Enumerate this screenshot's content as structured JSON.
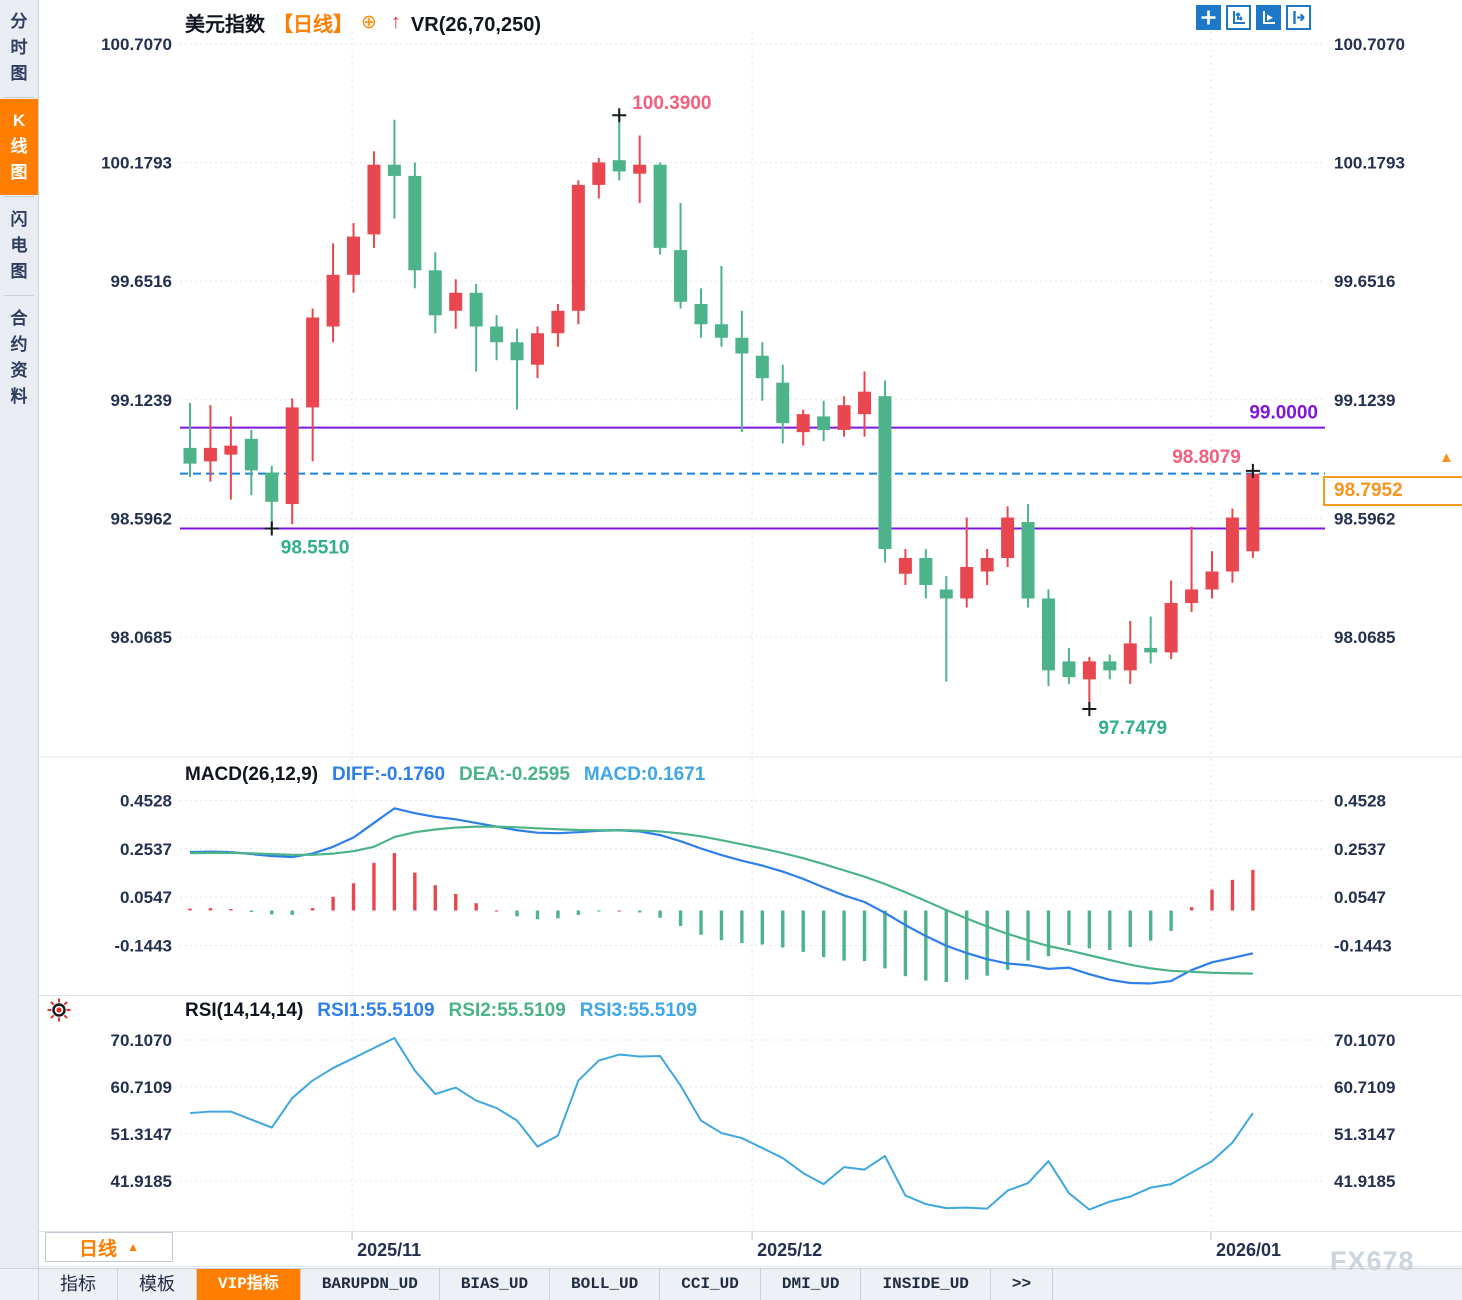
{
  "header": {
    "symbol": "美元指数",
    "period": "【日线】",
    "indicator": "VR(26,70,250)"
  },
  "toolbar": {
    "icons": [
      "crosshair-tool",
      "axis-scale-tool",
      "auto-fit-tool",
      "go-latest-tool"
    ]
  },
  "sidebar": {
    "tabs": [
      {
        "label": "分时图",
        "active": false
      },
      {
        "label": "K线图",
        "active": true
      },
      {
        "label": "闪电图",
        "active": false
      },
      {
        "label": "合约资料",
        "active": false
      }
    ]
  },
  "colors": {
    "up": "#e8474f",
    "down": "#4db38a",
    "purple_line": "#7d16e0",
    "dashed_blue": "#1b82e0",
    "diff_line": "#2e7fe8",
    "dea_line": "#4bb388",
    "macd_text": "#3fa6e8",
    "rsi_line": "#3ea7e0",
    "accent_orange": "#ff7e00",
    "price_box_orange": "#f59b22",
    "marker_pink": "#f2607d",
    "marker_teal": "#2fae8e",
    "axis_text": "#23304e"
  },
  "bottom": {
    "timeframe_button": {
      "label": "日线",
      "arrow": "▲"
    },
    "tabs": [
      {
        "label": "指标",
        "active": false
      },
      {
        "label": "模板",
        "active": false
      },
      {
        "label": "VIP指标",
        "active": true
      },
      {
        "label": "BARUPDN_UD",
        "active": false
      },
      {
        "label": "BIAS_UD",
        "active": false
      },
      {
        "label": "BOLL_UD",
        "active": false
      },
      {
        "label": "CCI_UD",
        "active": false
      },
      {
        "label": "DMI_UD",
        "active": false
      },
      {
        "label": "INSIDE_UD",
        "active": false
      },
      {
        "label": ">>",
        "active": false
      }
    ],
    "watermark": "FX678"
  },
  "chart_data": {
    "type": "candlestick",
    "title": "美元指数 日线",
    "x_axis": {
      "labels": [
        "2025/11",
        "2025/12",
        "2026/01"
      ],
      "gridline_indexes": [
        7.93,
        27.5,
        49.95
      ]
    },
    "main": {
      "y_ticks": [
        "100.7070",
        "100.1793",
        "99.6516",
        "99.1239",
        "98.5962",
        "98.0685"
      ],
      "hlines": [
        {
          "value": 99.0,
          "label": "99.0000"
        },
        {
          "value": 98.551,
          "label": ""
        }
      ],
      "current_price": {
        "value": 98.7952,
        "label": "98.7952"
      },
      "annotations": [
        {
          "index": 4,
          "at": "low",
          "text": "98.5510",
          "side": "below"
        },
        {
          "index": 21,
          "at": "high",
          "text": "100.3900",
          "side": "right"
        },
        {
          "index": 44,
          "at": "low",
          "text": "97.7479",
          "side": "below"
        },
        {
          "index": 52,
          "at": "high",
          "text": "98.8079",
          "side": "left"
        }
      ],
      "candles": [
        [
          98.91,
          99.11,
          98.78,
          98.84
        ],
        [
          98.85,
          99.1,
          98.76,
          98.91
        ],
        [
          98.88,
          99.05,
          98.68,
          98.92
        ],
        [
          98.95,
          98.99,
          98.7,
          98.81
        ],
        [
          98.8,
          98.83,
          98.551,
          98.67
        ],
        [
          98.66,
          99.13,
          98.57,
          99.09
        ],
        [
          99.09,
          99.53,
          98.85,
          99.49
        ],
        [
          99.45,
          99.82,
          99.38,
          99.68
        ],
        [
          99.68,
          99.91,
          99.6,
          99.85
        ],
        [
          99.86,
          100.23,
          99.8,
          100.17
        ],
        [
          100.17,
          100.37,
          99.93,
          100.12
        ],
        [
          100.12,
          100.18,
          99.62,
          99.7
        ],
        [
          99.7,
          99.78,
          99.42,
          99.5
        ],
        [
          99.52,
          99.66,
          99.44,
          99.6
        ],
        [
          99.6,
          99.64,
          99.25,
          99.45
        ],
        [
          99.45,
          99.5,
          99.3,
          99.38
        ],
        [
          99.38,
          99.44,
          99.08,
          99.3
        ],
        [
          99.28,
          99.45,
          99.22,
          99.42
        ],
        [
          99.42,
          99.55,
          99.36,
          99.52
        ],
        [
          99.52,
          100.1,
          99.46,
          100.08
        ],
        [
          100.08,
          100.2,
          100.02,
          100.18
        ],
        [
          100.19,
          100.39,
          100.1,
          100.14
        ],
        [
          100.13,
          100.3,
          100.0,
          100.17
        ],
        [
          100.17,
          100.18,
          99.77,
          99.8
        ],
        [
          99.79,
          100.0,
          99.53,
          99.56
        ],
        [
          99.55,
          99.62,
          99.4,
          99.46
        ],
        [
          99.46,
          99.72,
          99.36,
          99.4
        ],
        [
          99.4,
          99.52,
          98.98,
          99.33
        ],
        [
          99.32,
          99.38,
          99.12,
          99.22
        ],
        [
          99.2,
          99.28,
          98.93,
          99.02
        ],
        [
          98.98,
          99.08,
          98.92,
          99.06
        ],
        [
          99.05,
          99.12,
          98.94,
          98.99
        ],
        [
          98.99,
          99.14,
          98.96,
          99.1
        ],
        [
          99.06,
          99.25,
          98.96,
          99.16
        ],
        [
          99.14,
          99.21,
          98.4,
          98.46
        ],
        [
          98.35,
          98.46,
          98.3,
          98.42
        ],
        [
          98.42,
          98.46,
          98.24,
          98.3
        ],
        [
          98.28,
          98.34,
          97.87,
          98.24
        ],
        [
          98.24,
          98.6,
          98.2,
          98.38
        ],
        [
          98.36,
          98.46,
          98.3,
          98.42
        ],
        [
          98.42,
          98.65,
          98.38,
          98.6
        ],
        [
          98.58,
          98.66,
          98.2,
          98.24
        ],
        [
          98.24,
          98.28,
          97.85,
          97.92
        ],
        [
          97.96,
          98.02,
          97.86,
          97.89
        ],
        [
          97.88,
          97.98,
          97.7479,
          97.96
        ],
        [
          97.96,
          97.99,
          97.88,
          97.92
        ],
        [
          97.92,
          98.14,
          97.86,
          98.04
        ],
        [
          98.02,
          98.16,
          97.95,
          98.0
        ],
        [
          98.0,
          98.32,
          97.97,
          98.22
        ],
        [
          98.22,
          98.56,
          98.18,
          98.28
        ],
        [
          98.28,
          98.45,
          98.24,
          98.36
        ],
        [
          98.36,
          98.64,
          98.31,
          98.6
        ],
        [
          98.45,
          98.8079,
          98.42,
          98.7952
        ]
      ]
    },
    "macd": {
      "label": "MACD(26,12,9)",
      "readouts": [
        {
          "text": "DIFF:-0.1760"
        },
        {
          "text": "DEA:-0.2595"
        },
        {
          "text": "MACD:0.1671"
        }
      ],
      "y_ticks": [
        "0.4528",
        "0.2537",
        "0.0547",
        "-0.1443"
      ],
      "diff": [
        0.24,
        0.242,
        0.24,
        0.232,
        0.224,
        0.22,
        0.234,
        0.262,
        0.3,
        0.36,
        0.42,
        0.4,
        0.385,
        0.375,
        0.36,
        0.345,
        0.33,
        0.32,
        0.318,
        0.322,
        0.328,
        0.33,
        0.325,
        0.31,
        0.285,
        0.255,
        0.228,
        0.205,
        0.185,
        0.16,
        0.13,
        0.095,
        0.062,
        0.035,
        -0.01,
        -0.06,
        -0.105,
        -0.145,
        -0.175,
        -0.2,
        -0.218,
        -0.225,
        -0.24,
        -0.235,
        -0.262,
        -0.285,
        -0.298,
        -0.3,
        -0.29,
        -0.245,
        -0.213,
        -0.195,
        -0.176
      ],
      "dea": [
        0.236,
        0.237,
        0.237,
        0.235,
        0.232,
        0.229,
        0.229,
        0.234,
        0.244,
        0.262,
        0.302,
        0.322,
        0.333,
        0.341,
        0.345,
        0.345,
        0.342,
        0.338,
        0.334,
        0.331,
        0.33,
        0.33,
        0.329,
        0.325,
        0.317,
        0.305,
        0.289,
        0.272,
        0.255,
        0.236,
        0.215,
        0.191,
        0.165,
        0.139,
        0.109,
        0.075,
        0.039,
        0.002,
        -0.033,
        -0.066,
        -0.096,
        -0.122,
        -0.146,
        -0.164,
        -0.184,
        -0.204,
        -0.223,
        -0.238,
        -0.248,
        -0.252,
        -0.256,
        -0.258,
        -0.2595
      ]
    },
    "rsi": {
      "label": "RSI(14,14,14)",
      "readouts": [
        {
          "text": "RSI1:55.5109"
        },
        {
          "text": "RSI2:55.5109"
        },
        {
          "text": "RSI3:55.5109"
        }
      ],
      "y_ticks": [
        "70.1070",
        "60.7109",
        "51.3147",
        "41.9185"
      ],
      "values": [
        55.5,
        55.8,
        55.8,
        54.2,
        52.6,
        58.5,
        62.0,
        64.5,
        66.5,
        68.5,
        70.5,
        64.0,
        59.3,
        60.6,
        58.0,
        56.5,
        54.0,
        48.8,
        51.0,
        62.0,
        66.0,
        67.2,
        66.8,
        66.9,
        61.0,
        54.0,
        51.5,
        50.5,
        48.5,
        46.5,
        43.5,
        41.3,
        44.7,
        44.2,
        46.9,
        39.0,
        37.3,
        36.5,
        36.6,
        36.4,
        40.0,
        41.5,
        45.9,
        39.5,
        36.2,
        37.8,
        38.8,
        40.6,
        41.3,
        43.6,
        45.9,
        49.6,
        55.51
      ]
    }
  }
}
